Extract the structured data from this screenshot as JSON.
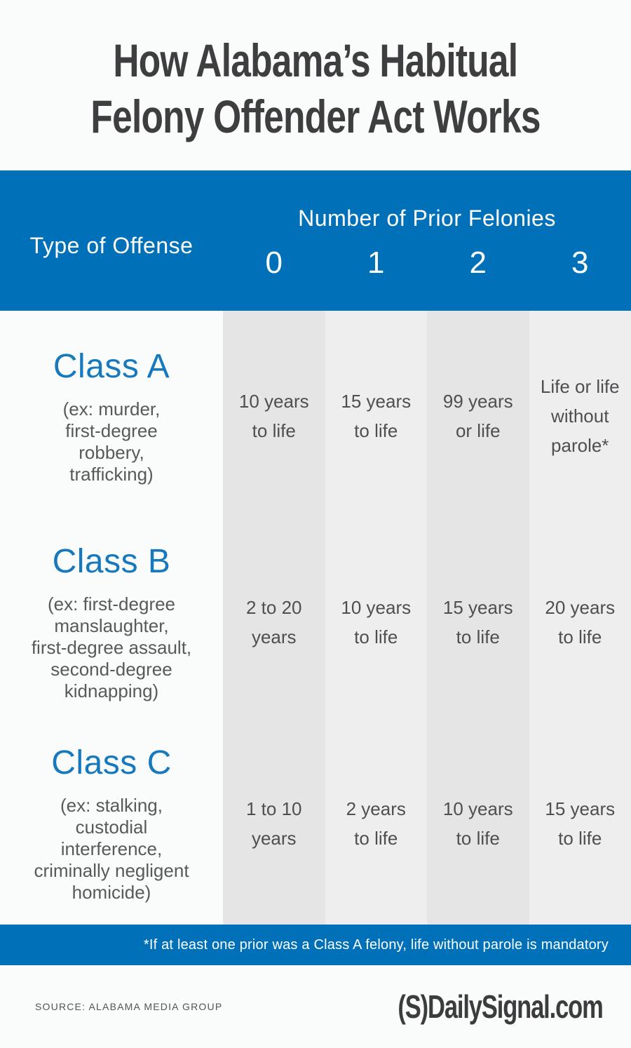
{
  "colors": {
    "accent_blue": "#0071b9",
    "class_label_blue": "#1678bd",
    "title_gray": "#3e3e40",
    "body_gray": "#58595b",
    "column_dark": "#e5e5e6",
    "column_light": "#eeeeef",
    "background": "#fafbfb"
  },
  "title": {
    "line1": "How Alabama’s Habitual",
    "line2": "Felony Offender Act Works"
  },
  "header": {
    "offense": "Type of Offense",
    "priors": "Number of Prior Felonies",
    "counts": [
      "0",
      "1",
      "2",
      "3"
    ]
  },
  "rows": [
    {
      "label": "Class A",
      "examples": [
        "(ex: murder,",
        "first-degree",
        "robbery,",
        "trafficking)"
      ],
      "cells": [
        [
          "10 years",
          "to life"
        ],
        [
          "15 years",
          "to life"
        ],
        [
          "99 years",
          "or life"
        ],
        [
          "Life or life",
          "without",
          "parole*"
        ]
      ]
    },
    {
      "label": "Class B",
      "examples": [
        "(ex: first-degree",
        "manslaughter,",
        "first-degree assault,",
        "second-degree",
        "kidnapping)"
      ],
      "cells": [
        [
          "2 to 20",
          "years"
        ],
        [
          "10 years",
          "to life"
        ],
        [
          "15 years",
          "to life"
        ],
        [
          "20 years",
          "to life"
        ]
      ]
    },
    {
      "label": "Class C",
      "examples": [
        "(ex: stalking,",
        "custodial",
        "interference,",
        "criminally negligent",
        "homicide)"
      ],
      "cells": [
        [
          "1 to 10",
          "years"
        ],
        [
          "2 years",
          "to life"
        ],
        [
          "10 years",
          "to life"
        ],
        [
          "15 years",
          "to life"
        ]
      ]
    }
  ],
  "footnote": "*If at least one prior was a Class A felony, life without parole is mandatory",
  "footer": {
    "source": "SOURCE: ALABAMA MEDIA GROUP",
    "logo_mark": "(S)",
    "logo_text": "DailySignal.com"
  },
  "chart_data": {
    "type": "table",
    "title": "How Alabama’s Habitual Felony Offender Act Works",
    "column_group_label": "Number of Prior Felonies",
    "columns": [
      "Type of Offense",
      "0",
      "1",
      "2",
      "3"
    ],
    "rows": [
      {
        "offense_class": "Class A",
        "examples": "ex: murder, first-degree robbery, trafficking",
        "sentences_by_priors": [
          "10 years to life",
          "15 years to life",
          "99 years or life",
          "Life or life without parole*"
        ]
      },
      {
        "offense_class": "Class B",
        "examples": "ex: first-degree manslaughter, first-degree assault, second-degree kidnapping",
        "sentences_by_priors": [
          "2 to 20 years",
          "10 years to life",
          "15 years to life",
          "20 years to life"
        ]
      },
      {
        "offense_class": "Class C",
        "examples": "ex: stalking, custodial interference, criminally negligent homicide",
        "sentences_by_priors": [
          "1 to 10 years",
          "2 years to life",
          "10 years to life",
          "15 years to life"
        ]
      }
    ],
    "footnote": "*If at least one prior was a Class A felony, life without parole is mandatory",
    "source": "Alabama Media Group"
  }
}
